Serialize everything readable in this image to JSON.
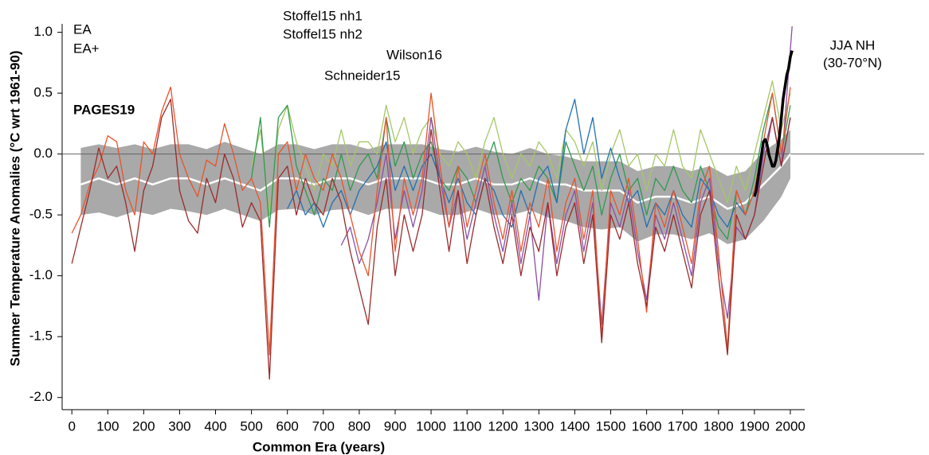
{
  "chart_data": {
    "type": "line",
    "x_label": "Common Era (years)",
    "y_label": "Summer Temperature Anomalies (°C wrt 1961-90)",
    "xlim": [
      -27,
      2040
    ],
    "ylim": [
      -2.1,
      1.2
    ],
    "xticks": [
      0,
      100,
      200,
      300,
      400,
      500,
      600,
      700,
      800,
      900,
      1000,
      1100,
      1200,
      1300,
      1400,
      1500,
      1600,
      1700,
      1800,
      1900,
      2000
    ],
    "yticks": [
      {
        "value": 1.0,
        "label": "1.0"
      },
      {
        "value": 0.5,
        "label": "0.5"
      },
      {
        "value": 0.0,
        "label": "0.0"
      },
      {
        "value": -0.5,
        "label": "-0.5"
      },
      {
        "value": -1.0,
        "label": "-1.0"
      },
      {
        "value": -1.5,
        "label": "-1.5"
      },
      {
        "value": -2.0,
        "label": "-2.0"
      }
    ],
    "zero_line": true,
    "annotations": [
      "(30-70°N)"
    ],
    "band": {
      "name": "PAGES19",
      "color": "#a9a9a9",
      "median_color": "#ffffff",
      "x": [
        25,
        75,
        125,
        175,
        225,
        275,
        325,
        375,
        425,
        475,
        525,
        575,
        625,
        675,
        725,
        775,
        825,
        875,
        925,
        975,
        1025,
        1075,
        1125,
        1175,
        1225,
        1275,
        1325,
        1375,
        1425,
        1475,
        1525,
        1575,
        1625,
        1675,
        1725,
        1775,
        1825,
        1875,
        1925,
        1975,
        2000
      ],
      "values": [
        -0.25,
        -0.2,
        -0.25,
        -0.2,
        -0.25,
        -0.2,
        -0.2,
        -0.25,
        -0.2,
        -0.25,
        -0.3,
        -0.2,
        -0.2,
        -0.25,
        -0.2,
        -0.2,
        -0.25,
        -0.2,
        -0.2,
        -0.2,
        -0.25,
        -0.25,
        -0.2,
        -0.25,
        -0.25,
        -0.2,
        -0.25,
        -0.25,
        -0.3,
        -0.3,
        -0.3,
        -0.4,
        -0.35,
        -0.35,
        -0.4,
        -0.35,
        -0.45,
        -0.4,
        -0.25,
        -0.1,
        0.0
      ],
      "low": [
        -0.5,
        -0.48,
        -0.52,
        -0.47,
        -0.5,
        -0.45,
        -0.47,
        -0.5,
        -0.45,
        -0.5,
        -0.55,
        -0.46,
        -0.45,
        -0.5,
        -0.46,
        -0.45,
        -0.5,
        -0.45,
        -0.45,
        -0.45,
        -0.5,
        -0.5,
        -0.45,
        -0.5,
        -0.5,
        -0.46,
        -0.52,
        -0.55,
        -0.6,
        -0.62,
        -0.6,
        -0.72,
        -0.66,
        -0.66,
        -0.7,
        -0.65,
        -0.74,
        -0.7,
        -0.55,
        -0.35,
        -0.2
      ],
      "high": [
        0.05,
        0.08,
        0.05,
        0.08,
        0.04,
        0.08,
        0.08,
        0.04,
        0.1,
        0.05,
        0.0,
        0.08,
        0.08,
        0.04,
        0.08,
        0.08,
        0.04,
        0.08,
        0.08,
        0.08,
        0.04,
        0.02,
        0.06,
        0.02,
        0.0,
        0.05,
        0.0,
        -0.02,
        -0.06,
        -0.06,
        -0.06,
        -0.14,
        -0.1,
        -0.1,
        -0.14,
        -0.1,
        -0.18,
        -0.14,
        0.02,
        0.12,
        0.2
      ]
    },
    "series": [
      {
        "name": "Stoffel15 nh2",
        "color": "#a6c766",
        "x": [
          500,
          525,
          550,
          575,
          600,
          625,
          650,
          675,
          700,
          725,
          750,
          775,
          800,
          825,
          850,
          875,
          900,
          925,
          950,
          975,
          1000,
          1025,
          1050,
          1075,
          1100,
          1125,
          1150,
          1175,
          1200,
          1225,
          1250,
          1275,
          1300,
          1325,
          1350,
          1375,
          1400,
          1425,
          1450,
          1475,
          1500,
          1525,
          1550,
          1575,
          1600,
          1625,
          1650,
          1675,
          1700,
          1725,
          1750,
          1775,
          1800,
          1825,
          1850,
          1875,
          1900,
          1925,
          1950,
          1975,
          2000
        ],
        "values": [
          -0.1,
          0.2,
          -0.5,
          0.2,
          0.4,
          0.1,
          -0.1,
          -0.3,
          0.0,
          -0.1,
          0.2,
          -0.1,
          0.1,
          0.1,
          0.0,
          0.4,
          0.1,
          0.3,
          0.0,
          0.2,
          0.3,
          0.0,
          -0.1,
          0.1,
          0.0,
          -0.2,
          0.1,
          0.3,
          0.0,
          -0.2,
          0.0,
          -0.1,
          0.1,
          0.0,
          -0.2,
          0.2,
          0.1,
          -0.1,
          0.1,
          -0.3,
          0.0,
          0.2,
          -0.1,
          0.0,
          -0.3,
          0.0,
          -0.1,
          0.2,
          -0.1,
          -0.2,
          0.2,
          0.0,
          -0.2,
          -0.4,
          -0.1,
          -0.3,
          0.0,
          0.3,
          0.6,
          0.2,
          0.5
        ]
      },
      {
        "name": "Stoffel15 nh1",
        "color": "#2f9a4e",
        "x": [
          500,
          525,
          550,
          575,
          600,
          625,
          650,
          675,
          700,
          725,
          750,
          775,
          800,
          825,
          850,
          875,
          900,
          925,
          950,
          975,
          1000,
          1025,
          1050,
          1075,
          1100,
          1125,
          1150,
          1175,
          1200,
          1225,
          1250,
          1275,
          1300,
          1325,
          1350,
          1375,
          1400,
          1425,
          1450,
          1475,
          1500,
          1525,
          1550,
          1575,
          1600,
          1625,
          1650,
          1675,
          1700,
          1725,
          1750,
          1775,
          1800,
          1825,
          1850,
          1875,
          1900,
          1925,
          1950,
          1975,
          2000
        ],
        "values": [
          -0.2,
          0.3,
          -0.6,
          0.3,
          0.4,
          -0.1,
          -0.3,
          -0.5,
          -0.2,
          -0.3,
          0.0,
          -0.3,
          -0.1,
          0.0,
          -0.2,
          0.3,
          -0.1,
          0.1,
          -0.2,
          0.0,
          0.1,
          -0.2,
          -0.3,
          -0.1,
          -0.2,
          -0.4,
          -0.1,
          0.1,
          -0.2,
          -0.4,
          -0.2,
          -0.3,
          -0.1,
          -0.2,
          -0.4,
          0.1,
          -0.1,
          -0.3,
          -0.1,
          -0.5,
          -0.2,
          0.0,
          -0.3,
          -0.2,
          -0.5,
          -0.2,
          -0.3,
          -0.1,
          -0.3,
          -0.4,
          -0.1,
          -0.3,
          -0.6,
          -0.7,
          -0.3,
          -0.5,
          -0.2,
          0.2,
          0.5,
          0.0,
          0.4
        ]
      },
      {
        "name": "Schneider15",
        "color": "#2170b0",
        "x": [
          600,
          625,
          650,
          675,
          700,
          725,
          750,
          775,
          800,
          825,
          850,
          875,
          900,
          925,
          950,
          975,
          1000,
          1025,
          1050,
          1075,
          1100,
          1125,
          1150,
          1175,
          1200,
          1225,
          1250,
          1275,
          1300,
          1325,
          1350,
          1375,
          1400,
          1425,
          1450,
          1475,
          1500,
          1525,
          1550,
          1575,
          1600,
          1625,
          1650,
          1675,
          1700,
          1725,
          1750,
          1775,
          1800,
          1825,
          1850,
          1875,
          1900,
          1925,
          1950,
          1975,
          2000
        ],
        "values": [
          -0.45,
          -0.3,
          -0.5,
          -0.4,
          -0.6,
          -0.4,
          -0.3,
          -0.5,
          -0.3,
          -0.2,
          -0.1,
          0.1,
          -0.3,
          -0.1,
          -0.3,
          -0.1,
          0.0,
          -0.2,
          -0.4,
          -0.2,
          -0.4,
          -0.5,
          -0.2,
          -0.3,
          -0.5,
          -0.6,
          -0.3,
          -0.5,
          -0.2,
          -0.1,
          -0.4,
          0.2,
          0.45,
          0.0,
          0.3,
          -0.2,
          0.05,
          -0.2,
          -0.4,
          -0.3,
          -0.6,
          -0.4,
          -0.5,
          -0.3,
          -0.5,
          -0.6,
          -0.2,
          -0.3,
          -0.5,
          -0.6,
          -0.4,
          -0.5,
          -0.3,
          0.0,
          0.3,
          -0.1,
          0.3
        ]
      },
      {
        "name": "Wilson16",
        "color": "#8b4fa6",
        "x": [
          750,
          775,
          800,
          825,
          850,
          875,
          900,
          925,
          950,
          975,
          1000,
          1025,
          1050,
          1075,
          1100,
          1125,
          1150,
          1175,
          1200,
          1225,
          1250,
          1275,
          1300,
          1325,
          1350,
          1375,
          1400,
          1425,
          1450,
          1475,
          1500,
          1525,
          1550,
          1575,
          1600,
          1625,
          1650,
          1675,
          1700,
          1725,
          1750,
          1775,
          1800,
          1825,
          1850,
          1875,
          1900,
          1925,
          1950,
          1975,
          2005
        ],
        "values": [
          -0.75,
          -0.6,
          -0.9,
          -0.7,
          -0.4,
          0.0,
          -0.7,
          -0.3,
          -0.6,
          -0.3,
          0.3,
          -0.2,
          -0.6,
          -0.3,
          -0.7,
          -0.4,
          -0.1,
          -0.5,
          -0.8,
          -0.4,
          -0.9,
          -0.5,
          -1.2,
          -0.4,
          -0.9,
          -0.5,
          -0.3,
          -0.8,
          -0.4,
          -1.4,
          -0.4,
          -0.6,
          -0.3,
          -0.8,
          -1.2,
          -0.5,
          -0.7,
          -0.4,
          -0.7,
          -1.0,
          -0.4,
          -0.2,
          -0.9,
          -1.35,
          -0.6,
          -0.7,
          -0.5,
          0.0,
          0.3,
          -0.1,
          1.05
        ]
      },
      {
        "name": "EA+",
        "color": "#e8542c",
        "x": [
          0,
          25,
          50,
          75,
          100,
          125,
          150,
          175,
          200,
          225,
          250,
          275,
          300,
          325,
          350,
          375,
          400,
          425,
          450,
          475,
          500,
          525,
          550,
          575,
          600,
          625,
          650,
          675,
          700,
          725,
          750,
          775,
          800,
          825,
          850,
          875,
          900,
          925,
          950,
          975,
          1000,
          1025,
          1050,
          1075,
          1100,
          1125,
          1150,
          1175,
          1200,
          1225,
          1250,
          1275,
          1300,
          1325,
          1350,
          1375,
          1400,
          1425,
          1450,
          1475,
          1500,
          1525,
          1550,
          1575,
          1600,
          1625,
          1650,
          1675,
          1700,
          1725,
          1750,
          1775,
          1800,
          1825,
          1850,
          1875,
          1900,
          1925,
          1950,
          1975,
          2000
        ],
        "values": [
          -0.65,
          -0.5,
          -0.25,
          -0.1,
          0.15,
          0.1,
          -0.3,
          -0.5,
          0.1,
          0.0,
          0.35,
          0.55,
          0.0,
          -0.2,
          -0.35,
          -0.05,
          -0.1,
          0.25,
          0.0,
          -0.3,
          -0.2,
          -0.4,
          -1.65,
          0.0,
          0.1,
          -0.3,
          0.0,
          -0.2,
          -0.3,
          0.0,
          -0.2,
          -0.5,
          -0.8,
          -1.0,
          -0.3,
          0.3,
          -0.8,
          -0.2,
          -0.5,
          -0.2,
          0.5,
          -0.1,
          -0.6,
          -0.1,
          -0.6,
          -0.3,
          0.0,
          -0.4,
          -0.7,
          -0.3,
          -0.8,
          -0.4,
          -0.6,
          -0.2,
          -0.8,
          -0.4,
          -0.2,
          -0.7,
          -0.3,
          -1.5,
          -0.3,
          -0.5,
          -0.2,
          -0.7,
          -1.3,
          -0.4,
          -0.6,
          -0.3,
          -0.6,
          -0.9,
          -0.3,
          -0.1,
          -0.8,
          -1.6,
          -0.3,
          -0.5,
          -0.3,
          0.1,
          0.5,
          0.0,
          0.55
        ]
      },
      {
        "name": "EA",
        "color": "#9c2a2a",
        "x": [
          0,
          25,
          50,
          75,
          100,
          125,
          150,
          175,
          200,
          225,
          250,
          275,
          300,
          325,
          350,
          375,
          400,
          425,
          450,
          475,
          500,
          525,
          550,
          575,
          600,
          625,
          650,
          675,
          700,
          725,
          750,
          775,
          800,
          825,
          850,
          875,
          900,
          925,
          950,
          975,
          1000,
          1025,
          1050,
          1075,
          1100,
          1125,
          1150,
          1175,
          1200,
          1225,
          1250,
          1275,
          1300,
          1325,
          1350,
          1375,
          1400,
          1425,
          1450,
          1475,
          1500,
          1525,
          1550,
          1575,
          1600,
          1625,
          1650,
          1675,
          1700,
          1725,
          1750,
          1775,
          1800,
          1825,
          1850,
          1875,
          1900,
          1925,
          1950,
          1975,
          2000
        ],
        "values": [
          -0.9,
          -0.6,
          -0.3,
          0.05,
          -0.2,
          -0.1,
          -0.4,
          -0.8,
          -0.3,
          -0.1,
          0.3,
          0.45,
          -0.3,
          -0.55,
          -0.65,
          -0.2,
          -0.4,
          0.0,
          -0.2,
          -0.6,
          -0.4,
          -0.55,
          -1.85,
          -0.2,
          -0.1,
          -0.5,
          -0.2,
          -0.4,
          -0.5,
          -0.2,
          -0.4,
          -0.8,
          -1.1,
          -1.4,
          -0.6,
          -0.2,
          -1.0,
          -0.5,
          -0.8,
          -0.5,
          0.2,
          -0.3,
          -0.8,
          -0.3,
          -0.9,
          -0.5,
          -0.2,
          -0.6,
          -0.9,
          -0.5,
          -1.0,
          -0.6,
          -0.8,
          -0.4,
          -1.0,
          -0.6,
          -0.4,
          -0.9,
          -0.5,
          -1.55,
          -0.5,
          -0.7,
          -0.4,
          -0.9,
          -1.25,
          -0.6,
          -0.8,
          -0.5,
          -0.8,
          -1.1,
          -0.5,
          -0.3,
          -1.0,
          -1.65,
          -0.5,
          -0.7,
          -0.5,
          -0.1,
          0.3,
          -0.1,
          0.3
        ]
      },
      {
        "name": "JJA NH",
        "color": "#000000",
        "x": [
          1900,
          1905,
          1910,
          1915,
          1920,
          1925,
          1930,
          1935,
          1940,
          1945,
          1950,
          1955,
          1960,
          1965,
          1970,
          1975,
          1980,
          1985,
          1990,
          1995,
          2000,
          2005
        ],
        "values": [
          -0.35,
          -0.3,
          -0.2,
          -0.1,
          0.0,
          0.1,
          0.12,
          0.08,
          0.0,
          -0.05,
          -0.1,
          -0.1,
          -0.05,
          0.05,
          0.15,
          0.3,
          0.45,
          0.55,
          0.65,
          0.7,
          0.8,
          0.85
        ]
      }
    ]
  }
}
